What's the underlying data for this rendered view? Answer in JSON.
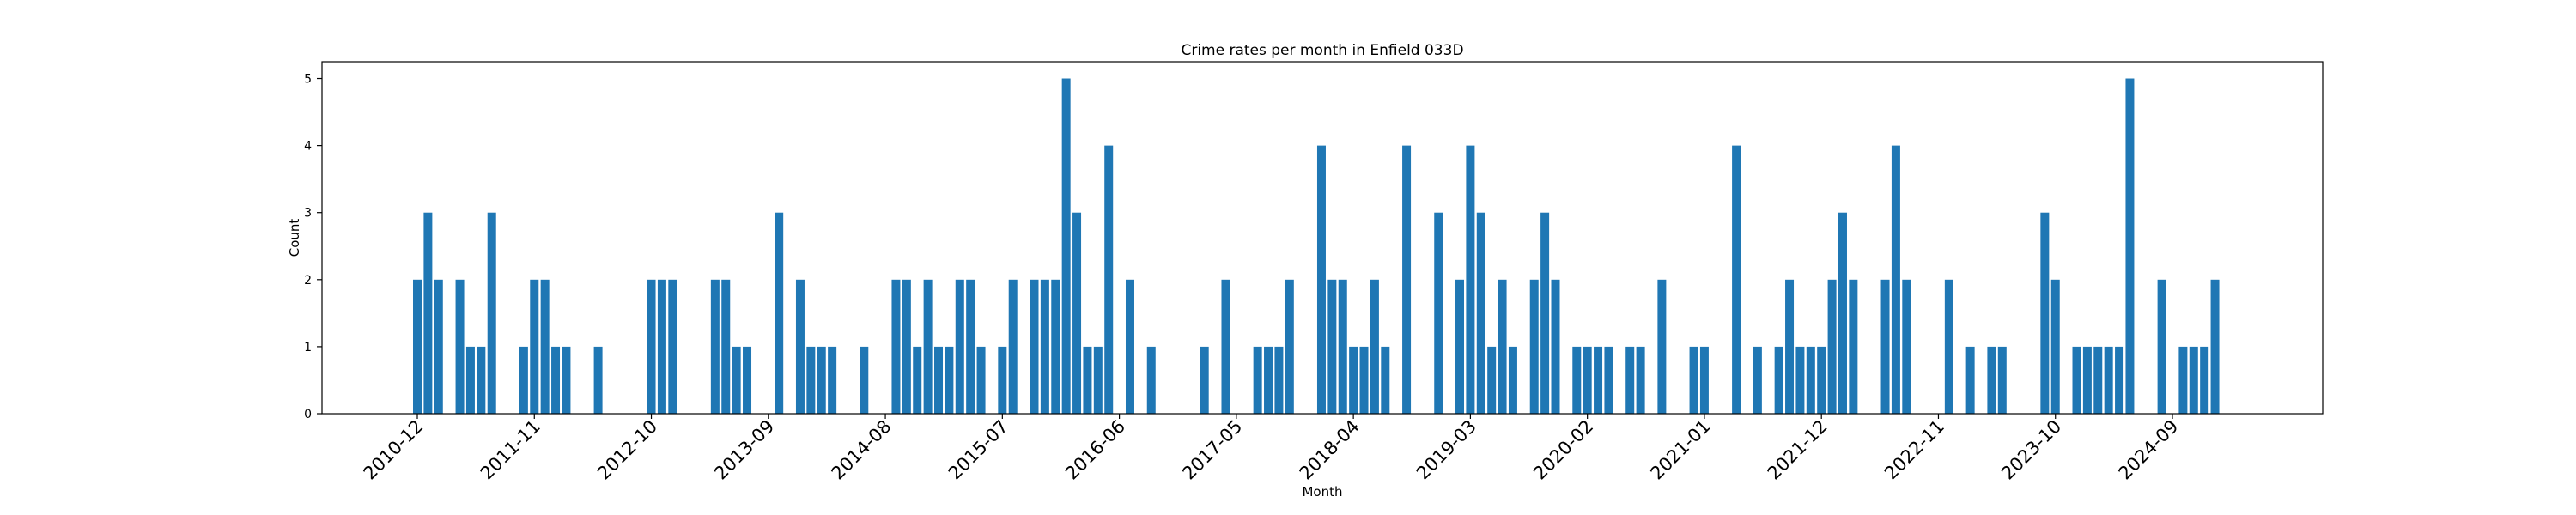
{
  "chart_data": {
    "type": "bar",
    "title": "Crime rates per month in Enfield 033D",
    "xlabel": "Month",
    "ylabel": "Count",
    "ylim": [
      0,
      5.25
    ],
    "yticks": [
      0,
      1,
      2,
      3,
      4,
      5
    ],
    "grid": false,
    "bar_color": "#1f77b4",
    "x_tick_labels": [
      "2010-12",
      "2011-11",
      "2012-10",
      "2013-09",
      "2014-08",
      "2015-07",
      "2016-06",
      "2017-05",
      "2018-04",
      "2019-03",
      "2020-02",
      "2021-01",
      "2021-12",
      "2022-11",
      "2023-10",
      "2024-09"
    ],
    "data": [
      {
        "x": "2010-12",
        "y": 2
      },
      {
        "x": "2011-01",
        "y": 3
      },
      {
        "x": "2011-02",
        "y": 2
      },
      {
        "x": "2011-04",
        "y": 2
      },
      {
        "x": "2011-05",
        "y": 1
      },
      {
        "x": "2011-06",
        "y": 1
      },
      {
        "x": "2011-07",
        "y": 3
      },
      {
        "x": "2011-10",
        "y": 1
      },
      {
        "x": "2011-11",
        "y": 2
      },
      {
        "x": "2011-12",
        "y": 2
      },
      {
        "x": "2012-01",
        "y": 1
      },
      {
        "x": "2012-02",
        "y": 1
      },
      {
        "x": "2012-05",
        "y": 1
      },
      {
        "x": "2012-10",
        "y": 2
      },
      {
        "x": "2012-11",
        "y": 2
      },
      {
        "x": "2012-12",
        "y": 2
      },
      {
        "x": "2013-04",
        "y": 2
      },
      {
        "x": "2013-05",
        "y": 2
      },
      {
        "x": "2013-06",
        "y": 1
      },
      {
        "x": "2013-07",
        "y": 1
      },
      {
        "x": "2013-10",
        "y": 3
      },
      {
        "x": "2013-12",
        "y": 2
      },
      {
        "x": "2014-01",
        "y": 1
      },
      {
        "x": "2014-02",
        "y": 1
      },
      {
        "x": "2014-03",
        "y": 1
      },
      {
        "x": "2014-06",
        "y": 1
      },
      {
        "x": "2014-09",
        "y": 2
      },
      {
        "x": "2014-10",
        "y": 2
      },
      {
        "x": "2014-11",
        "y": 1
      },
      {
        "x": "2014-12",
        "y": 2
      },
      {
        "x": "2015-01",
        "y": 1
      },
      {
        "x": "2015-02",
        "y": 1
      },
      {
        "x": "2015-03",
        "y": 2
      },
      {
        "x": "2015-04",
        "y": 2
      },
      {
        "x": "2015-05",
        "y": 1
      },
      {
        "x": "2015-07",
        "y": 1
      },
      {
        "x": "2015-08",
        "y": 2
      },
      {
        "x": "2015-10",
        "y": 2
      },
      {
        "x": "2015-11",
        "y": 2
      },
      {
        "x": "2015-12",
        "y": 2
      },
      {
        "x": "2016-01",
        "y": 5
      },
      {
        "x": "2016-02",
        "y": 3
      },
      {
        "x": "2016-03",
        "y": 1
      },
      {
        "x": "2016-04",
        "y": 1
      },
      {
        "x": "2016-05",
        "y": 4
      },
      {
        "x": "2016-07",
        "y": 2
      },
      {
        "x": "2016-09",
        "y": 1
      },
      {
        "x": "2017-02",
        "y": 1
      },
      {
        "x": "2017-04",
        "y": 2
      },
      {
        "x": "2017-07",
        "y": 1
      },
      {
        "x": "2017-08",
        "y": 1
      },
      {
        "x": "2017-09",
        "y": 1
      },
      {
        "x": "2017-10",
        "y": 2
      },
      {
        "x": "2018-01",
        "y": 4
      },
      {
        "x": "2018-02",
        "y": 2
      },
      {
        "x": "2018-03",
        "y": 2
      },
      {
        "x": "2018-04",
        "y": 1
      },
      {
        "x": "2018-05",
        "y": 1
      },
      {
        "x": "2018-06",
        "y": 2
      },
      {
        "x": "2018-07",
        "y": 1
      },
      {
        "x": "2018-09",
        "y": 4
      },
      {
        "x": "2018-12",
        "y": 3
      },
      {
        "x": "2019-02",
        "y": 2
      },
      {
        "x": "2019-03",
        "y": 4
      },
      {
        "x": "2019-04",
        "y": 3
      },
      {
        "x": "2019-05",
        "y": 1
      },
      {
        "x": "2019-06",
        "y": 2
      },
      {
        "x": "2019-07",
        "y": 1
      },
      {
        "x": "2019-09",
        "y": 2
      },
      {
        "x": "2019-10",
        "y": 3
      },
      {
        "x": "2019-11",
        "y": 2
      },
      {
        "x": "2020-01",
        "y": 1
      },
      {
        "x": "2020-02",
        "y": 1
      },
      {
        "x": "2020-03",
        "y": 1
      },
      {
        "x": "2020-04",
        "y": 1
      },
      {
        "x": "2020-06",
        "y": 1
      },
      {
        "x": "2020-07",
        "y": 1
      },
      {
        "x": "2020-09",
        "y": 2
      },
      {
        "x": "2020-12",
        "y": 1
      },
      {
        "x": "2021-01",
        "y": 1
      },
      {
        "x": "2021-04",
        "y": 4
      },
      {
        "x": "2021-06",
        "y": 1
      },
      {
        "x": "2021-08",
        "y": 1
      },
      {
        "x": "2021-09",
        "y": 2
      },
      {
        "x": "2021-10",
        "y": 1
      },
      {
        "x": "2021-11",
        "y": 1
      },
      {
        "x": "2021-12",
        "y": 1
      },
      {
        "x": "2022-01",
        "y": 2
      },
      {
        "x": "2022-02",
        "y": 3
      },
      {
        "x": "2022-03",
        "y": 2
      },
      {
        "x": "2022-06",
        "y": 2
      },
      {
        "x": "2022-07",
        "y": 4
      },
      {
        "x": "2022-08",
        "y": 2
      },
      {
        "x": "2022-12",
        "y": 2
      },
      {
        "x": "2023-02",
        "y": 1
      },
      {
        "x": "2023-04",
        "y": 1
      },
      {
        "x": "2023-05",
        "y": 1
      },
      {
        "x": "2023-09",
        "y": 3
      },
      {
        "x": "2023-10",
        "y": 2
      },
      {
        "x": "2023-12",
        "y": 1
      },
      {
        "x": "2024-01",
        "y": 1
      },
      {
        "x": "2024-02",
        "y": 1
      },
      {
        "x": "2024-03",
        "y": 1
      },
      {
        "x": "2024-04",
        "y": 1
      },
      {
        "x": "2024-05",
        "y": 5
      },
      {
        "x": "2024-08",
        "y": 2
      },
      {
        "x": "2024-10",
        "y": 1
      },
      {
        "x": "2024-11",
        "y": 1
      },
      {
        "x": "2024-12",
        "y": 1
      },
      {
        "x": "2025-01",
        "y": 2
      }
    ]
  }
}
